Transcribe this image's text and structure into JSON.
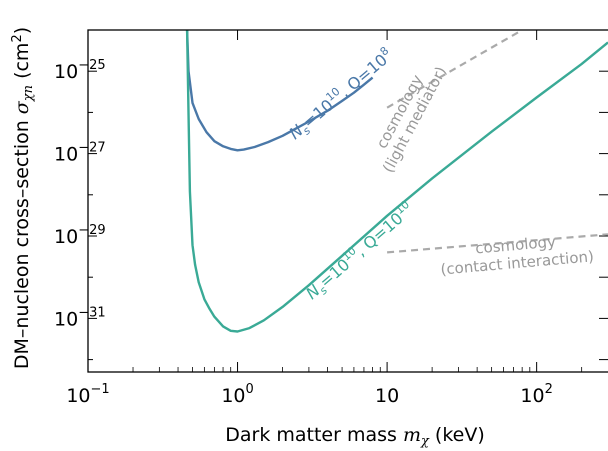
{
  "chart_data": {
    "type": "line",
    "xscale": "log",
    "yscale": "log",
    "xlim": [
      0.1,
      300
    ],
    "ylim": [
      5e-33,
      1e-24
    ],
    "xlabel": "Dark matter mass m_χ (keV)",
    "ylabel": "DM–nucleon cross–section σ_χn (cm²)",
    "xlabel_parts": {
      "text": "Dark matter mass ",
      "sym": "m",
      "sub": "χ",
      "unit": " (keV)"
    },
    "ylabel_parts": {
      "text": "DM–nucleon cross–section ",
      "sym": "σ",
      "sub": "χn",
      "unit_pre": " (cm",
      "unit_sup": "2",
      "unit_post": ")"
    },
    "x_ticks": [
      {
        "value": 0.1,
        "base": "10",
        "exp": "−1"
      },
      {
        "value": 1,
        "base": "10",
        "exp": "0"
      },
      {
        "value": 10,
        "base": "10",
        "exp": ""
      },
      {
        "value": 100,
        "base": "10",
        "exp": "2"
      }
    ],
    "y_ticks": [
      {
        "value": 1e-25,
        "base": "10",
        "exp": "−25"
      },
      {
        "value": 1e-27,
        "base": "10",
        "exp": "−27"
      },
      {
        "value": 1e-29,
        "base": "10",
        "exp": "−29"
      },
      {
        "value": 1e-31,
        "base": "10",
        "exp": "−31"
      }
    ],
    "series": [
      {
        "label_parts": {
          "n": "N",
          "s": "s",
          "eq": "=10",
          "e1": "10",
          "q": ", Q=10",
          "e2": "8"
        },
        "color": "#4a78a8",
        "x": [
          0.46,
          0.47,
          0.5,
          0.55,
          0.62,
          0.7,
          0.8,
          0.9,
          1.0,
          1.1,
          1.3,
          1.6,
          2.0,
          2.5,
          3.0,
          4.0,
          5.0,
          6.0,
          7.0,
          8.0
        ],
        "y": [
          1e-24,
          1e-25,
          1.7e-26,
          6.9e-27,
          3.3e-27,
          2e-27,
          1.5e-27,
          1.3e-27,
          1.2e-27,
          1.25e-27,
          1.45e-27,
          1.9e-27,
          2.7e-27,
          4.2e-27,
          6e-27,
          1.1e-26,
          1.9e-26,
          3e-26,
          4.7e-26,
          7e-26
        ]
      },
      {
        "label_parts": {
          "n": "N",
          "s": "s",
          "eq": "=10",
          "e1": "10",
          "q": ", Q=10",
          "e2": "10"
        },
        "color": "#3aaa96",
        "x": [
          0.46,
          0.47,
          0.48,
          0.5,
          0.52,
          0.55,
          0.6,
          0.65,
          0.7,
          0.8,
          0.9,
          1.0,
          1.2,
          1.5,
          2.0,
          3.0,
          5.0,
          10,
          20,
          50,
          100,
          200,
          300
        ],
        "y": [
          1e-24,
          1e-26,
          1.2e-28,
          6e-30,
          2e-30,
          7.5e-31,
          2.9e-31,
          1.7e-31,
          1.1e-31,
          6.4e-32,
          5e-32,
          4.8e-32,
          5.8e-32,
          9e-32,
          1.9e-31,
          6.4e-31,
          3.3e-30,
          3.1e-29,
          2.5e-28,
          3.4e-27,
          2.3e-26,
          1.5e-25,
          5e-25
        ]
      },
      {
        "label_line1": "cosmology",
        "label_line2": "(light mediator)",
        "color": "#aaaaaa",
        "style": "dashed",
        "x": [
          10,
          80
        ],
        "y": [
          1.3e-26,
          1e-24
        ]
      },
      {
        "label_line1": "cosmology",
        "label_line2": "(contact interaction)",
        "color": "#aaaaaa",
        "style": "dashed",
        "x": [
          10,
          300
        ],
        "y": [
          4e-30,
          1.1e-29
        ]
      }
    ]
  }
}
